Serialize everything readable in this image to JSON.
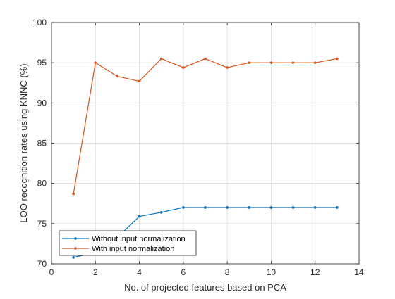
{
  "chart_data": {
    "type": "line",
    "title": "",
    "xlabel": "No. of projected features based on PCA",
    "ylabel": "LOO recognition rates using KNNC (%)",
    "xlim": [
      0,
      14
    ],
    "ylim": [
      70,
      100
    ],
    "xticks": [
      0,
      2,
      4,
      6,
      8,
      10,
      12,
      14
    ],
    "yticks": [
      70,
      75,
      80,
      85,
      90,
      95,
      100
    ],
    "grid": true,
    "legend_position": "bottom-left",
    "x": [
      1,
      2,
      3,
      4,
      5,
      6,
      7,
      8,
      9,
      10,
      11,
      12,
      13
    ],
    "series": [
      {
        "name": "Without input normalization",
        "color": "#0072BD",
        "values": [
          70.8,
          71.4,
          73.3,
          75.9,
          76.4,
          77.0,
          77.0,
          77.0,
          77.0,
          77.0,
          77.0,
          77.0,
          77.0
        ]
      },
      {
        "name": "With input normalization",
        "color": "#D95319",
        "values": [
          78.7,
          95.0,
          93.3,
          92.7,
          95.5,
          94.4,
          95.5,
          94.4,
          95.0,
          95.0,
          95.0,
          95.0,
          95.5
        ]
      }
    ]
  }
}
